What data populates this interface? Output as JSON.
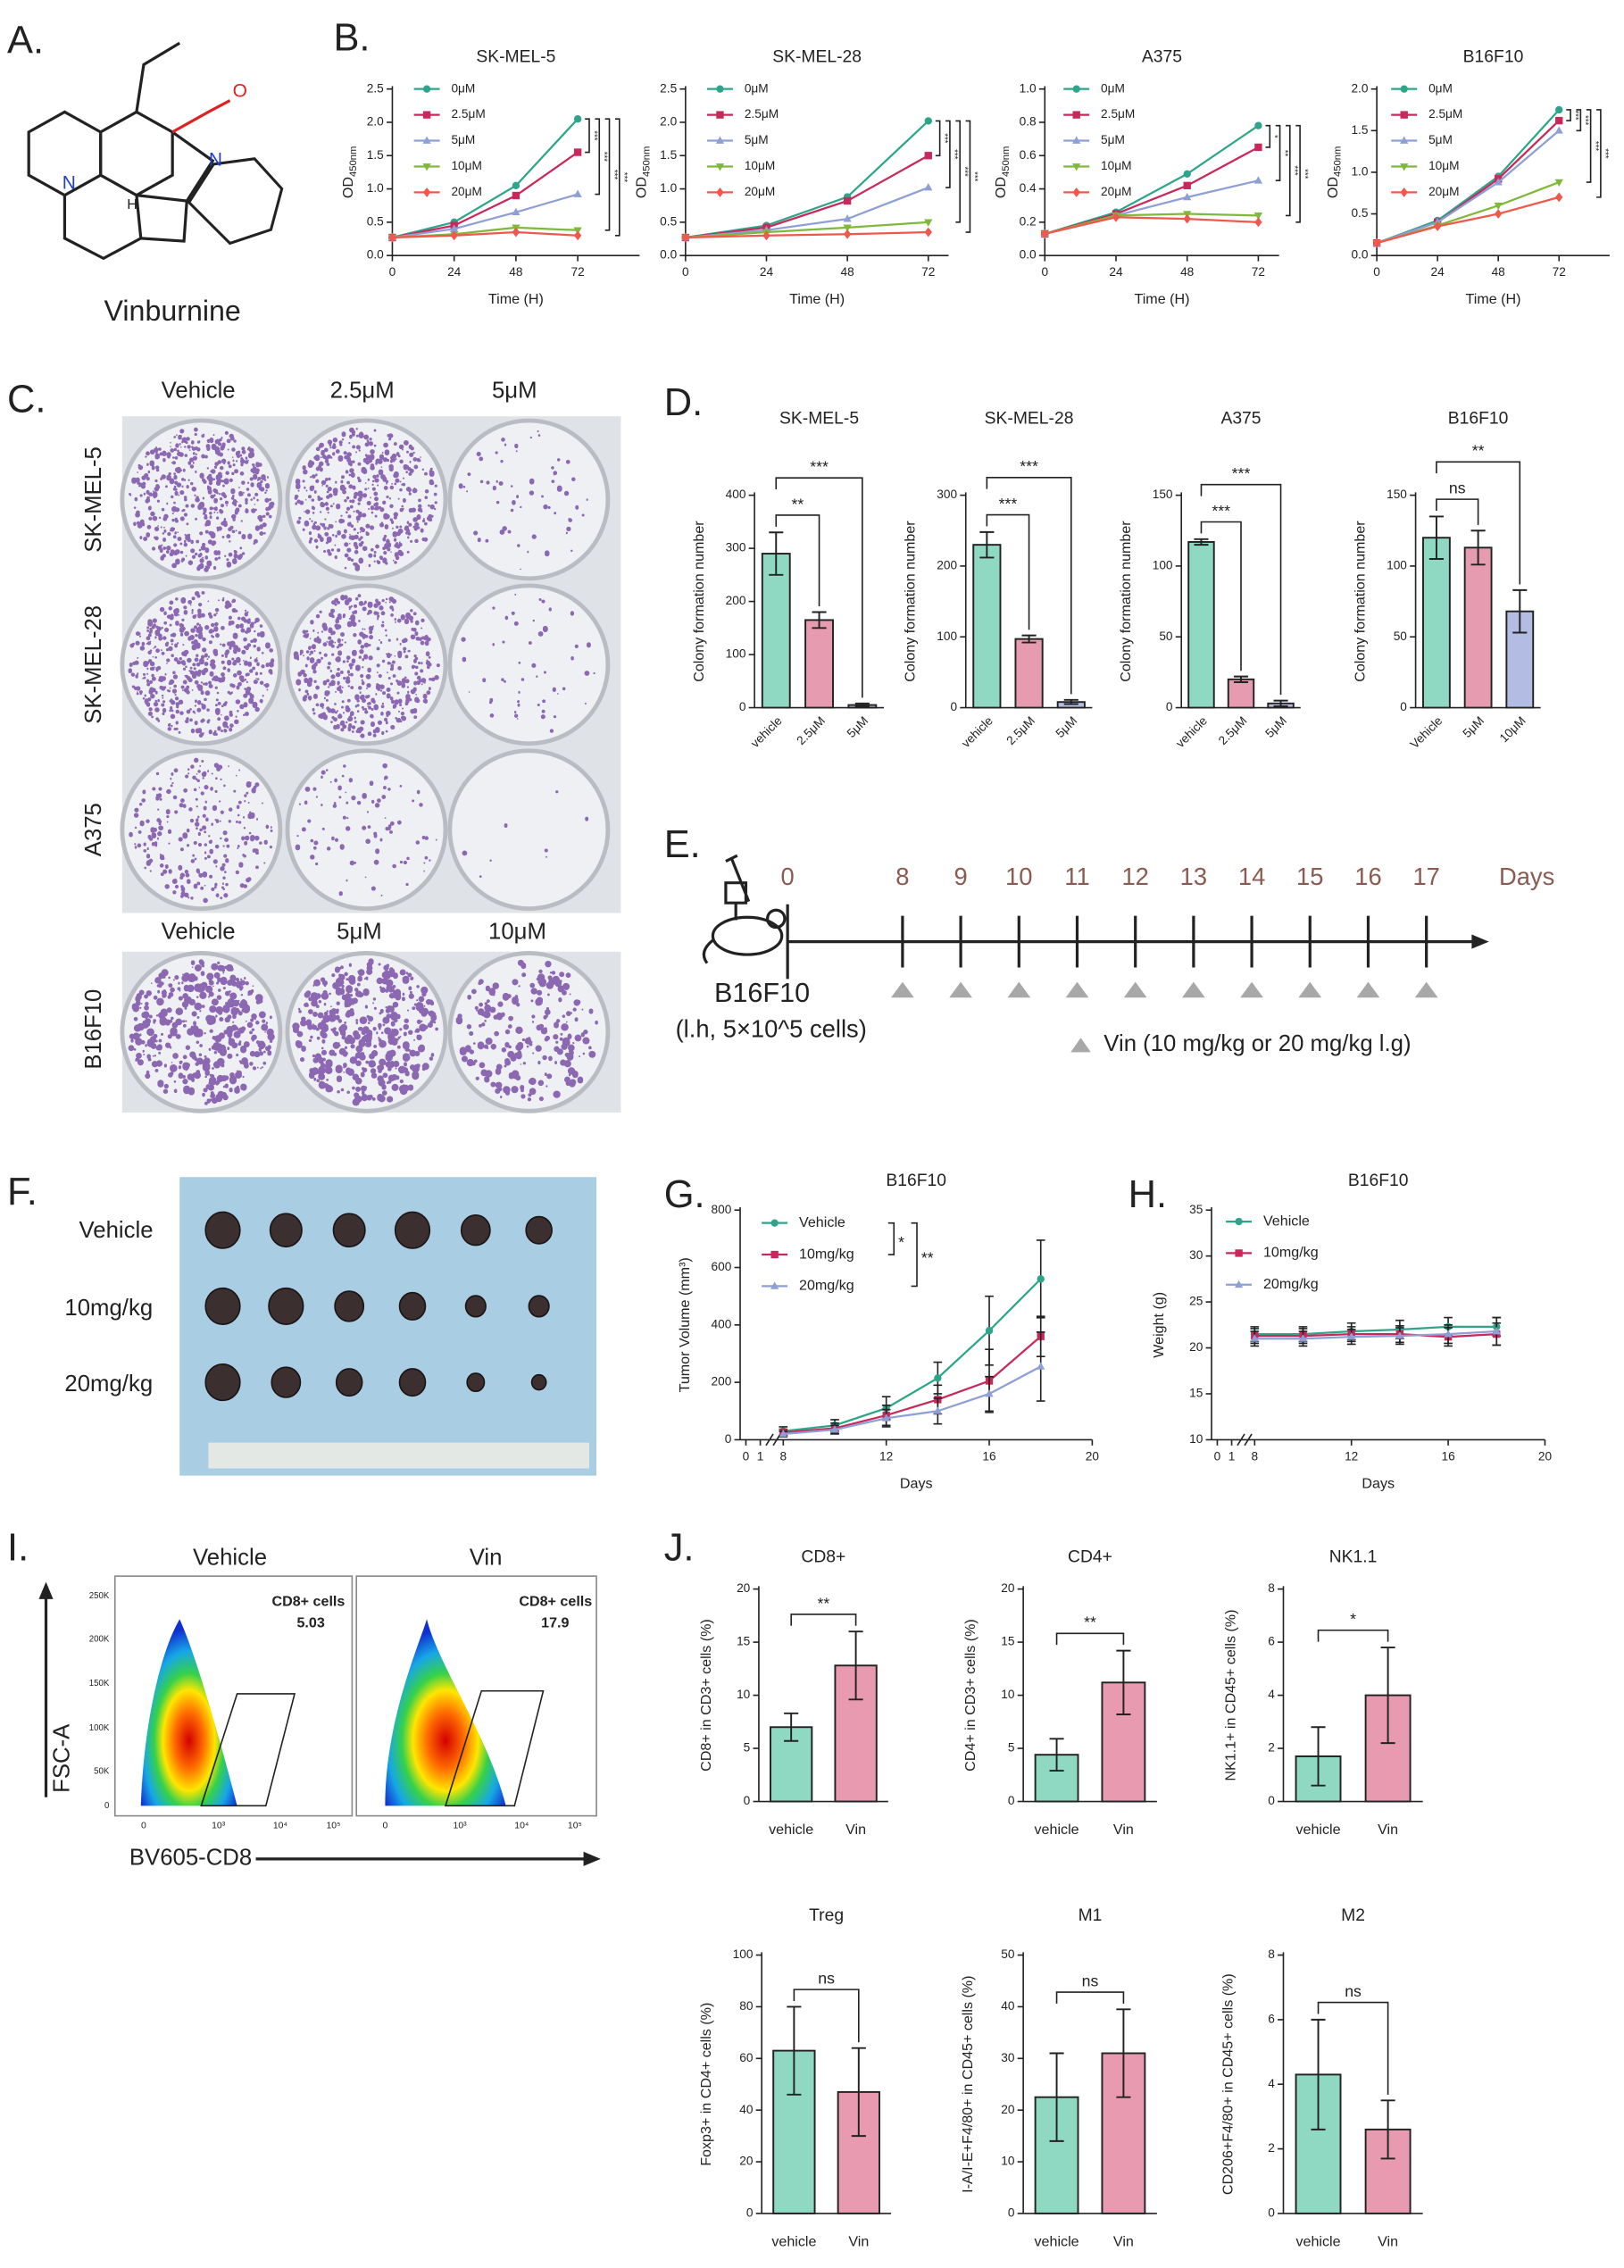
{
  "panel_labels": [
    "A.",
    "B.",
    "C.",
    "D.",
    "E.",
    "F.",
    "G.",
    "H.",
    "I.",
    "J."
  ],
  "structure": {
    "name": "Vinburnine",
    "atoms": [
      "N",
      "N",
      "H",
      "O"
    ]
  },
  "colony_assay": {
    "columns": [
      "Vehicle",
      "2.5μM",
      "5μM"
    ],
    "rows": [
      "SK-MEL-5",
      "SK-MEL-28",
      "A375"
    ],
    "columns_b16f10": [
      "Vehicle",
      "5μM",
      "10μM"
    ],
    "row_b16f10": "B16F10"
  },
  "timeline": {
    "days": [
      0,
      8,
      9,
      10,
      11,
      12,
      13,
      14,
      15,
      16,
      17
    ],
    "unit": "Days",
    "cell_line": "B16F10",
    "injection": "(l.h, 5×10^5 cells)",
    "legend": "Vin (10 mg/kg or 20 mg/kg l.g)"
  },
  "tumor_photo": {
    "groups": [
      "Vehicle",
      "10mg/kg",
      "20mg/kg"
    ]
  },
  "flow": {
    "panels": [
      {
        "title": "Vehicle",
        "gate": "CD8+ cells",
        "value": 5.03
      },
      {
        "title": "Vin",
        "gate": "CD8+ cells",
        "value": 17.9
      }
    ],
    "y_label": "FSC-A",
    "x_label": "BV605-CD8",
    "yticks": [
      "250K",
      "200K",
      "150K",
      "100K",
      "50K",
      "0"
    ],
    "xticks": [
      "0",
      "10³",
      "10⁴",
      "10⁵"
    ]
  },
  "chart_data": [
    {
      "type": "line",
      "title": "SK-MEL-5",
      "x": [
        0,
        24,
        48,
        72
      ],
      "xlim": [
        0,
        96
      ],
      "xticks": [
        0,
        24,
        48,
        72
      ],
      "x_label": "Time (H)",
      "y_label": "OD",
      "y_label_sub": "450nm",
      "ylim": [
        0,
        2.5
      ],
      "yticks": [
        {
          "value": 0,
          "label": "0.0"
        },
        0.5,
        {
          "value": 1,
          "label": "1.0"
        },
        1.5,
        {
          "value": 2,
          "label": "2.0"
        },
        2.5
      ],
      "series": [
        {
          "name": "0μM",
          "color": "#2ea58a",
          "values": [
            0.27,
            0.5,
            1.05,
            2.05
          ]
        },
        {
          "name": "2.5μM",
          "color": "#c8285a",
          "values": [
            0.27,
            0.45,
            0.9,
            1.55
          ]
        },
        {
          "name": "5μM",
          "color": "#8e9fd6",
          "values": [
            0.27,
            0.4,
            0.65,
            0.92
          ]
        },
        {
          "name": "10μM",
          "color": "#7fb83a",
          "values": [
            0.27,
            0.32,
            0.42,
            0.38
          ]
        },
        {
          "name": "20μM",
          "color": "#f0584c",
          "values": [
            0.27,
            0.3,
            0.35,
            0.3
          ]
        }
      ],
      "significance": [
        "***",
        "***",
        "***",
        "***"
      ]
    },
    {
      "type": "line",
      "title": "SK-MEL-28",
      "x": [
        0,
        24,
        48,
        72
      ],
      "xlim": [
        0,
        78
      ],
      "xticks": [
        0,
        24,
        48,
        72
      ],
      "x_label": "Time (H)",
      "y_label": "OD",
      "y_label_sub": "450nm",
      "ylim": [
        0,
        2.5
      ],
      "yticks": [
        {
          "value": 0,
          "label": "0.0"
        },
        0.5,
        {
          "value": 1,
          "label": "1.0"
        },
        1.5,
        {
          "value": 2,
          "label": "2.0"
        },
        2.5
      ],
      "series": [
        {
          "name": "0μM",
          "color": "#2ea58a",
          "values": [
            0.27,
            0.45,
            0.88,
            2.02
          ]
        },
        {
          "name": "2.5μM",
          "color": "#c8285a",
          "values": [
            0.27,
            0.42,
            0.82,
            1.5
          ]
        },
        {
          "name": "5μM",
          "color": "#8e9fd6",
          "values": [
            0.27,
            0.38,
            0.55,
            1.02
          ]
        },
        {
          "name": "10μM",
          "color": "#7fb83a",
          "values": [
            0.27,
            0.35,
            0.42,
            0.5
          ]
        },
        {
          "name": "20μM",
          "color": "#f0584c",
          "values": [
            0.27,
            0.3,
            0.32,
            0.35
          ]
        }
      ],
      "significance": [
        "***",
        "***",
        "***",
        "***"
      ]
    },
    {
      "type": "line",
      "title": "A375",
      "x": [
        0,
        24,
        48,
        72
      ],
      "xlim": [
        0,
        79
      ],
      "xticks": [
        0,
        24,
        48,
        72
      ],
      "x_label": "Time (H)",
      "y_label": "OD",
      "y_label_sub": "450nm",
      "ylim": [
        0,
        1
      ],
      "yticks": [
        {
          "value": 0,
          "label": "0.0"
        },
        0.2,
        0.4,
        0.6,
        0.8,
        {
          "value": 1,
          "label": "1.0"
        }
      ],
      "series": [
        {
          "name": "0μM",
          "color": "#2ea58a",
          "values": [
            0.13,
            0.26,
            0.49,
            0.78
          ]
        },
        {
          "name": "2.5μM",
          "color": "#c8285a",
          "values": [
            0.13,
            0.25,
            0.42,
            0.65
          ]
        },
        {
          "name": "5μM",
          "color": "#8e9fd6",
          "values": [
            0.13,
            0.24,
            0.35,
            0.45
          ]
        },
        {
          "name": "10μM",
          "color": "#7fb83a",
          "values": [
            0.13,
            0.24,
            0.25,
            0.24
          ]
        },
        {
          "name": "20μM",
          "color": "#f0584c",
          "values": [
            0.13,
            0.23,
            0.22,
            0.2
          ]
        }
      ],
      "significance": [
        "*",
        "**",
        "***",
        "***"
      ]
    },
    {
      "type": "line",
      "title": "B16F10",
      "x": [
        0,
        24,
        48,
        72
      ],
      "xlim": [
        0,
        92
      ],
      "xticks": [
        0,
        24,
        48,
        72
      ],
      "x_label": "Time (H)",
      "y_label": "OD",
      "y_label_sub": "450nm",
      "ylim": [
        0,
        2
      ],
      "yticks": [
        {
          "value": 0,
          "label": "0.0"
        },
        0.5,
        {
          "value": 1,
          "label": "1.0"
        },
        1.5,
        {
          "value": 2,
          "label": "2.0"
        }
      ],
      "series": [
        {
          "name": "0μM",
          "color": "#2ea58a",
          "values": [
            0.15,
            0.42,
            0.95,
            1.75
          ]
        },
        {
          "name": "2.5μM",
          "color": "#c8285a",
          "values": [
            0.15,
            0.4,
            0.92,
            1.62
          ]
        },
        {
          "name": "5μM",
          "color": "#8e9fd6",
          "values": [
            0.15,
            0.4,
            0.88,
            1.5
          ]
        },
        {
          "name": "10μM",
          "color": "#7fb83a",
          "values": [
            0.15,
            0.36,
            0.6,
            0.88
          ]
        },
        {
          "name": "20μM",
          "color": "#f0584c",
          "values": [
            0.15,
            0.35,
            0.5,
            0.7
          ]
        }
      ],
      "significance": [
        "***",
        "***",
        "***",
        "***"
      ]
    },
    {
      "type": "bar",
      "title": "SK-MEL-5",
      "categories": [
        "vehicle",
        "2.5μM",
        "5μM"
      ],
      "values": [
        290,
        165,
        5
      ],
      "errors": [
        40,
        15,
        3
      ],
      "colors": [
        "#8fd9c2",
        "#e79bb0",
        "#b3bde3"
      ],
      "y_label": "Colony formation number",
      "ylim": [
        0,
        400
      ],
      "yticks": [
        0,
        100,
        200,
        300,
        400
      ],
      "significance": [
        "**",
        "***"
      ]
    },
    {
      "type": "bar",
      "title": "SK-MEL-28",
      "categories": [
        "vehicle",
        "2.5μM",
        "5μM"
      ],
      "values": [
        230,
        97,
        8
      ],
      "errors": [
        18,
        5,
        3
      ],
      "colors": [
        "#8fd9c2",
        "#e79bb0",
        "#b3bde3"
      ],
      "y_label": "Colony formation number",
      "ylim": [
        0,
        300
      ],
      "yticks": [
        0,
        100,
        200,
        300
      ],
      "significance": [
        "***",
        "***"
      ]
    },
    {
      "type": "bar",
      "title": "A375",
      "categories": [
        "vehicle",
        "2.5μM",
        "5μM"
      ],
      "values": [
        117,
        20,
        3
      ],
      "errors": [
        2,
        2,
        2
      ],
      "colors": [
        "#8fd9c2",
        "#e79bb0",
        "#b3bde3"
      ],
      "y_label": "Colony formation number",
      "ylim": [
        0,
        150
      ],
      "yticks": [
        0,
        50,
        100,
        150
      ],
      "significance": [
        "***",
        "***"
      ]
    },
    {
      "type": "bar",
      "title": "B16F10",
      "categories": [
        "Vehicle",
        "5μM",
        "10μM"
      ],
      "values": [
        120,
        113,
        68
      ],
      "errors": [
        15,
        12,
        15
      ],
      "colors": [
        "#8fd9c2",
        "#e79bb0",
        "#b3bde3"
      ],
      "y_label": "Colony formation number",
      "ylim": [
        0,
        150
      ],
      "yticks": [
        0,
        50,
        100,
        150
      ],
      "significance": [
        "ns",
        "**"
      ]
    },
    {
      "type": "line",
      "title": "B16F10",
      "axis_break": true,
      "x": [
        8,
        10,
        12,
        14,
        16,
        18
      ],
      "xlim": [
        0,
        20
      ],
      "xticks": [
        0,
        1,
        8,
        12,
        16,
        20
      ],
      "x_label": "Days",
      "y_label": "Tumor Volume (mm³)",
      "ylim": [
        0,
        800
      ],
      "yticks": [
        0,
        200,
        400,
        600,
        800
      ],
      "series": [
        {
          "name": "Vehicle",
          "color": "#2ea58a",
          "values": [
            30,
            50,
            110,
            215,
            380,
            560
          ],
          "errors": [
            15,
            20,
            40,
            55,
            120,
            135
          ]
        },
        {
          "name": "10mg/kg",
          "color": "#c8285a",
          "values": [
            25,
            40,
            85,
            140,
            205,
            360
          ],
          "errors": [
            12,
            18,
            35,
            50,
            110,
            70
          ]
        },
        {
          "name": "20mg/kg",
          "color": "#8e9fd6",
          "values": [
            20,
            35,
            75,
            100,
            160,
            255
          ],
          "errors": [
            10,
            15,
            30,
            45,
            60,
            120
          ]
        }
      ],
      "significance": [
        "*",
        "**"
      ]
    },
    {
      "type": "line",
      "title": "B16F10",
      "axis_break": true,
      "x": [
        8,
        10,
        12,
        14,
        16,
        18
      ],
      "xlim": [
        0,
        20
      ],
      "xticks": [
        0,
        1,
        8,
        12,
        16,
        20
      ],
      "x_label": "Days",
      "y_label": "Weight (g)",
      "ylim": [
        10,
        35
      ],
      "yticks": [
        10,
        15,
        20,
        25,
        30,
        35
      ],
      "series": [
        {
          "name": "Vehicle",
          "color": "#2ea58a",
          "values": [
            21.5,
            21.5,
            21.8,
            22,
            22.3,
            22.3
          ],
          "errors": [
            0.8,
            0.8,
            0.9,
            1,
            1,
            1
          ]
        },
        {
          "name": "10mg/kg",
          "color": "#c8285a",
          "values": [
            21.3,
            21.3,
            21.5,
            21.5,
            21.2,
            21.5
          ],
          "errors": [
            0.8,
            0.8,
            0.8,
            0.9,
            1,
            1.2
          ]
        },
        {
          "name": "20mg/kg",
          "color": "#8e9fd6",
          "values": [
            21,
            21,
            21.2,
            21.3,
            21.5,
            21.8
          ],
          "errors": [
            0.8,
            0.8,
            0.8,
            0.9,
            1,
            1.5
          ]
        }
      ]
    },
    {
      "type": "bar",
      "title": "CD8+",
      "categories": [
        "vehicle",
        "Vin"
      ],
      "values": [
        7,
        12.8
      ],
      "errors": [
        1.3,
        3.2
      ],
      "colors": [
        "#8fd9c2",
        "#e89ab0"
      ],
      "y_label": "CD8+ in CD3+ cells (%)",
      "ylim": [
        0,
        20
      ],
      "yticks": [
        0,
        5,
        10,
        15,
        20
      ],
      "significance": "**"
    },
    {
      "type": "bar",
      "title": "CD4+",
      "categories": [
        "vehicle",
        "Vin"
      ],
      "values": [
        4.4,
        11.2
      ],
      "errors": [
        1.5,
        3
      ],
      "colors": [
        "#8fd9c2",
        "#e89ab0"
      ],
      "y_label": "CD4+ in CD3+ cells (%)",
      "ylim": [
        0,
        20
      ],
      "yticks": [
        0,
        5,
        10,
        15,
        20
      ],
      "significance": "**"
    },
    {
      "type": "bar",
      "title": "NK1.1",
      "categories": [
        "vehicle",
        "Vin"
      ],
      "values": [
        1.7,
        4
      ],
      "errors": [
        1.1,
        1.8
      ],
      "colors": [
        "#8fd9c2",
        "#e89ab0"
      ],
      "y_label": "NK1.1+ in CD45+ cells (%)",
      "ylim": [
        0,
        8
      ],
      "yticks": [
        0,
        2,
        4,
        6,
        8
      ],
      "significance": "*"
    },
    {
      "type": "bar",
      "title": "Treg",
      "categories": [
        "vehicle",
        "Vin"
      ],
      "values": [
        63,
        47
      ],
      "errors": [
        17,
        17
      ],
      "colors": [
        "#8fd9c2",
        "#e89ab0"
      ],
      "y_label": "Foxp3+ in CD4+ cells (%)",
      "ylim": [
        0,
        100
      ],
      "yticks": [
        0,
        20,
        40,
        60,
        80,
        100
      ],
      "significance": "ns"
    },
    {
      "type": "bar",
      "title": "M1",
      "categories": [
        "vehicle",
        "Vin"
      ],
      "values": [
        22.5,
        31
      ],
      "errors": [
        8.5,
        8.5
      ],
      "colors": [
        "#8fd9c2",
        "#e89ab0"
      ],
      "y_label": "I-A/I-E+F4/80+ in CD45+ cells (%)",
      "ylim": [
        0,
        50
      ],
      "yticks": [
        0,
        10,
        20,
        30,
        40,
        50
      ],
      "significance": "ns"
    },
    {
      "type": "bar",
      "title": "M2",
      "categories": [
        "vehicle",
        "Vin"
      ],
      "values": [
        4.3,
        2.6
      ],
      "errors": [
        1.7,
        0.9
      ],
      "colors": [
        "#8fd9c2",
        "#e89ab0"
      ],
      "y_label": "CD206+F4/80+ in CD45+ cells (%)",
      "ylim": [
        0,
        8
      ],
      "yticks": [
        0,
        2,
        4,
        6,
        8
      ],
      "significance": "ns"
    }
  ]
}
